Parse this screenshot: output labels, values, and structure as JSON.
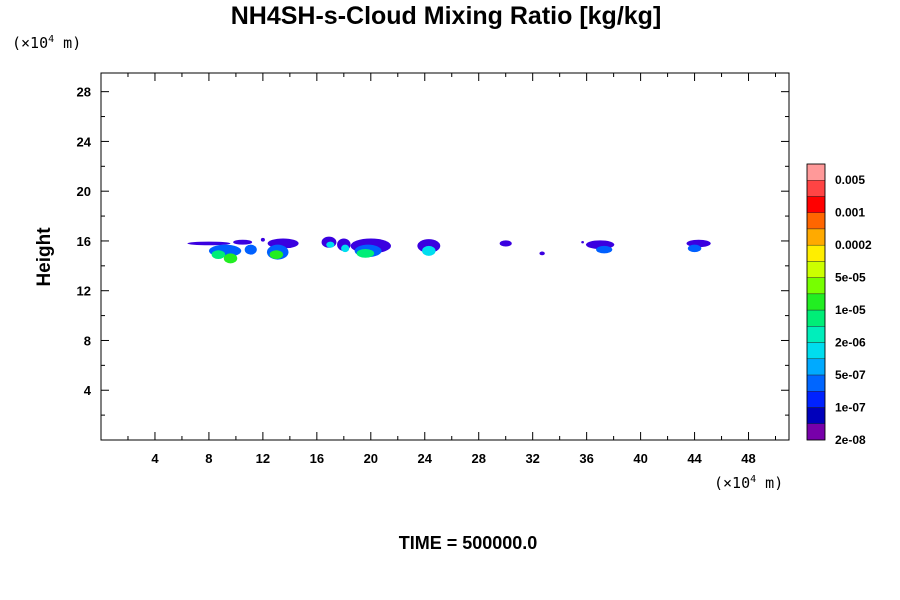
{
  "chart_data": {
    "type": "heatmap",
    "title": "NH4SH-s-Cloud Mixing Ratio [kg/kg]",
    "xlabel": "",
    "ylabel": "Height",
    "x_unit": {
      "prefix": "(×10",
      "exp": "4",
      "suffix": " m)"
    },
    "y_unit": {
      "prefix": "(×10",
      "exp": "4",
      "suffix": " m)"
    },
    "xlim": [
      0,
      51
    ],
    "ylim": [
      0,
      29.5
    ],
    "xticks": [
      "4",
      "8",
      "12",
      "16",
      "20",
      "24",
      "28",
      "32",
      "36",
      "40",
      "44",
      "48"
    ],
    "yticks": [
      "4",
      "8",
      "12",
      "16",
      "20",
      "24",
      "28"
    ],
    "colorbar": {
      "labels": [
        "0.005",
        "0.001",
        "0.0002",
        "5e-05",
        "1e-05",
        "2e-06",
        "5e-07",
        "1e-07",
        "2e-08"
      ],
      "colors": [
        "#ff9999",
        "#ff4444",
        "#ff0000",
        "#ff6600",
        "#ffaa00",
        "#ffee00",
        "#ccff00",
        "#77ff00",
        "#22ee22",
        "#00ee77",
        "#00eebb",
        "#00ddee",
        "#00aaff",
        "#0066ff",
        "#0022ff",
        "#0000bb",
        "#7700aa"
      ]
    },
    "cloud_patches": [
      {
        "x": 8.0,
        "y": 15.8,
        "w": 3.2,
        "h": 0.3,
        "level": 0
      },
      {
        "x": 9.2,
        "y": 15.2,
        "w": 2.4,
        "h": 1.0,
        "level": 1
      },
      {
        "x": 9.6,
        "y": 14.6,
        "w": 1.0,
        "h": 0.8,
        "level": 3
      },
      {
        "x": 8.7,
        "y": 14.9,
        "w": 1.0,
        "h": 0.7,
        "level": 4
      },
      {
        "x": 10.5,
        "y": 15.9,
        "w": 1.4,
        "h": 0.4,
        "level": 0
      },
      {
        "x": 11.1,
        "y": 15.3,
        "w": 0.9,
        "h": 0.8,
        "level": 1
      },
      {
        "x": 12.0,
        "y": 16.1,
        "w": 0.3,
        "h": 0.3,
        "level": 0
      },
      {
        "x": 13.5,
        "y": 15.8,
        "w": 2.3,
        "h": 0.8,
        "level": 0
      },
      {
        "x": 13.1,
        "y": 15.1,
        "w": 1.6,
        "h": 1.2,
        "level": 1
      },
      {
        "x": 13.0,
        "y": 14.9,
        "w": 1.0,
        "h": 0.7,
        "level": 3
      },
      {
        "x": 16.9,
        "y": 15.9,
        "w": 1.1,
        "h": 0.9,
        "level": 0
      },
      {
        "x": 17.0,
        "y": 15.7,
        "w": 0.6,
        "h": 0.5,
        "level": 2
      },
      {
        "x": 18.0,
        "y": 15.7,
        "w": 1.0,
        "h": 1.0,
        "level": 0
      },
      {
        "x": 18.1,
        "y": 15.4,
        "w": 0.6,
        "h": 0.6,
        "level": 2
      },
      {
        "x": 20.0,
        "y": 15.6,
        "w": 3.0,
        "h": 1.2,
        "level": 0
      },
      {
        "x": 19.8,
        "y": 15.2,
        "w": 2.0,
        "h": 1.0,
        "level": 1
      },
      {
        "x": 19.6,
        "y": 15.0,
        "w": 1.3,
        "h": 0.7,
        "level": 4
      },
      {
        "x": 24.3,
        "y": 15.6,
        "w": 1.7,
        "h": 1.1,
        "level": 0
      },
      {
        "x": 24.3,
        "y": 15.2,
        "w": 1.0,
        "h": 0.8,
        "level": 2
      },
      {
        "x": 30.0,
        "y": 15.8,
        "w": 0.9,
        "h": 0.5,
        "level": 0
      },
      {
        "x": 32.7,
        "y": 15.0,
        "w": 0.4,
        "h": 0.3,
        "level": 0
      },
      {
        "x": 35.7,
        "y": 15.9,
        "w": 0.2,
        "h": 0.2,
        "level": 0
      },
      {
        "x": 37.0,
        "y": 15.7,
        "w": 2.1,
        "h": 0.7,
        "level": 0
      },
      {
        "x": 37.3,
        "y": 15.3,
        "w": 1.2,
        "h": 0.6,
        "level": 1
      },
      {
        "x": 44.3,
        "y": 15.8,
        "w": 1.8,
        "h": 0.6,
        "level": 0
      },
      {
        "x": 44.0,
        "y": 15.4,
        "w": 1.0,
        "h": 0.6,
        "level": 1
      }
    ]
  },
  "footer": {
    "time_text": "TIME = 500000.0"
  },
  "colors": {
    "level_fills": [
      "#3a00e0",
      "#0060ff",
      "#00ddee",
      "#22ee22",
      "#00ee77"
    ]
  }
}
